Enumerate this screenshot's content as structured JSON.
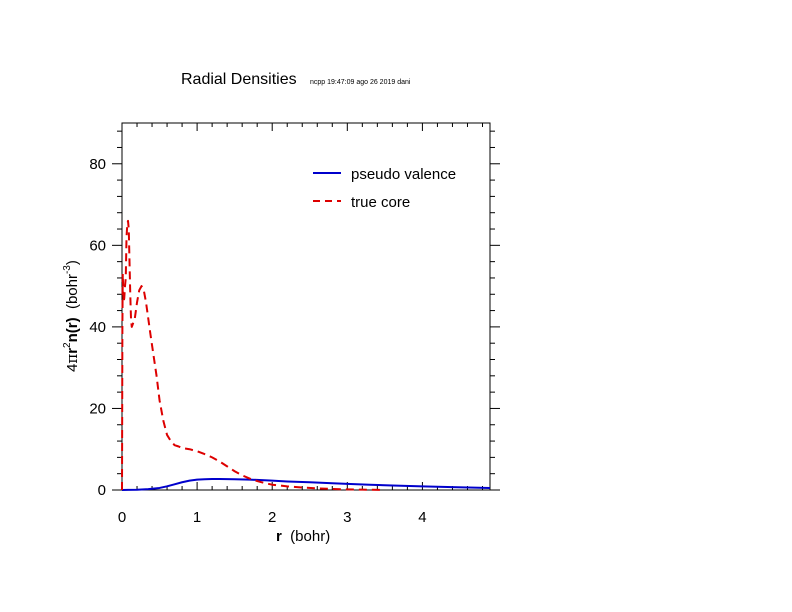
{
  "chart_data": {
    "type": "line",
    "title": "Radial Densities",
    "subtitle": "ncpp 19:47:09 ago 26 2019 dani",
    "xlabel": {
      "bold": "r",
      "rest": "  (bohr)"
    },
    "ylabel": {
      "prefix": "4",
      "pi": "π",
      "r": "r",
      "sup2": "2",
      "bold": "n(r)",
      "rest": "  (bohr",
      "sup": "-3",
      "close": ")"
    },
    "xlim": [
      0,
      4.9
    ],
    "ylim": [
      0,
      90
    ],
    "xticks": [
      0,
      1,
      2,
      3,
      4
    ],
    "xtick_labels": [
      "0",
      "1",
      "2",
      "3",
      "4"
    ],
    "yticks": [
      0,
      20,
      40,
      60,
      80
    ],
    "ytick_labels": [
      "0",
      "20",
      "40",
      "60",
      "80"
    ],
    "grid": false,
    "legend_position": "top-right",
    "series": [
      {
        "name": "pseudo valence",
        "color": "#0000cc",
        "dash": "solid",
        "x": [
          0,
          0.2,
          0.35,
          0.5,
          0.6,
          0.7,
          0.8,
          0.9,
          1.0,
          1.1,
          1.2,
          1.3,
          1.5,
          1.7,
          1.9,
          2.0,
          2.2,
          2.5,
          2.8,
          3.0,
          3.3,
          3.6,
          4.0,
          4.4,
          4.9
        ],
        "y": [
          0,
          0.05,
          0.2,
          0.5,
          0.9,
          1.4,
          1.9,
          2.3,
          2.55,
          2.65,
          2.7,
          2.7,
          2.65,
          2.55,
          2.4,
          2.3,
          2.1,
          1.9,
          1.65,
          1.5,
          1.3,
          1.1,
          0.9,
          0.7,
          0.5
        ]
      },
      {
        "name": "true core",
        "color": "#dd0000",
        "dash": "dashed",
        "x": [
          0,
          0.005,
          0.01,
          0.015,
          0.02,
          0.03,
          0.04,
          0.05,
          0.06,
          0.07,
          0.08,
          0.09,
          0.1,
          0.11,
          0.12,
          0.13,
          0.14,
          0.15,
          0.17,
          0.2,
          0.23,
          0.26,
          0.29,
          0.32,
          0.35,
          0.38,
          0.42,
          0.46,
          0.5,
          0.55,
          0.6,
          0.65,
          0.7,
          0.75,
          0.8,
          0.9,
          1.0,
          1.1,
          1.2,
          1.3,
          1.4,
          1.5,
          1.6,
          1.7,
          1.8,
          1.9,
          2.0,
          2.2,
          2.4,
          2.6,
          2.8,
          3.0,
          3.2,
          3.5
        ],
        "y": [
          0,
          40,
          53,
          50,
          46,
          47,
          50,
          52,
          62,
          65,
          66,
          64,
          56,
          48,
          42,
          40,
          40.5,
          41,
          42,
          46,
          49,
          50,
          49,
          46,
          42,
          38,
          33,
          28,
          22,
          17,
          13.5,
          12,
          11,
          10.7,
          10.3,
          10,
          9.5,
          8.8,
          8,
          7,
          5.8,
          4.6,
          3.6,
          2.8,
          2.2,
          1.7,
          1.3,
          0.9,
          0.6,
          0.4,
          0.25,
          0.15,
          0.08,
          0.03
        ]
      }
    ]
  }
}
